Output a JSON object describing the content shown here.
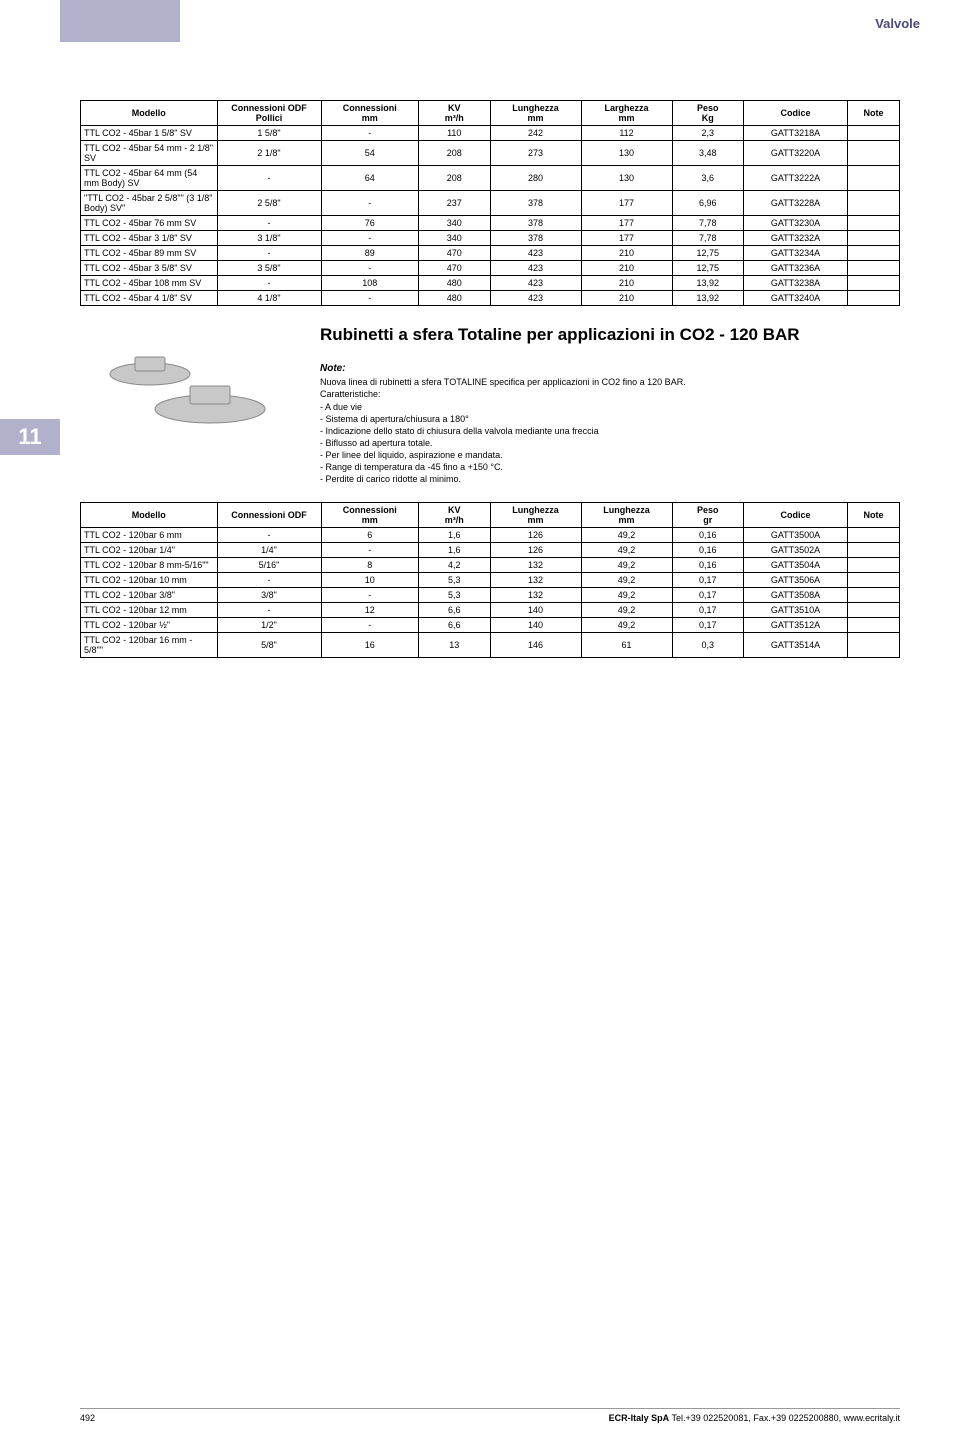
{
  "top_label": "Valvole",
  "side_num": "11",
  "table1": {
    "headers": [
      {
        "l1": "Modello",
        "l2": ""
      },
      {
        "l1": "Connessioni ODF",
        "l2": "Pollici"
      },
      {
        "l1": "Connessioni",
        "l2": "mm"
      },
      {
        "l1": "KV",
        "l2": "m³/h"
      },
      {
        "l1": "Lunghezza",
        "l2": "mm"
      },
      {
        "l1": "Larghezza",
        "l2": "mm"
      },
      {
        "l1": "Peso",
        "l2": "Kg"
      },
      {
        "l1": "Codice",
        "l2": ""
      },
      {
        "l1": "Note",
        "l2": ""
      }
    ],
    "rows": [
      [
        "TTL CO2 - 45bar 1 5/8\" SV",
        "1 5/8\"",
        "-",
        "110",
        "242",
        "112",
        "2,3",
        "GATT3218A",
        ""
      ],
      [
        "TTL CO2 - 45bar 54 mm - 2 1/8\" SV",
        "2 1/8\"",
        "54",
        "208",
        "273",
        "130",
        "3,48",
        "GATT3220A",
        ""
      ],
      [
        "TTL CO2 - 45bar 64 mm (54 mm Body) SV",
        "-",
        "64",
        "208",
        "280",
        "130",
        "3,6",
        "GATT3222A",
        ""
      ],
      [
        "\"TTL CO2 - 45bar 2 5/8\"\" (3 1/8\" Body) SV\"",
        "2 5/8\"",
        "-",
        "237",
        "378",
        "177",
        "6,96",
        "GATT3228A",
        ""
      ],
      [
        "TTL CO2 - 45bar 76 mm SV",
        "-",
        "76",
        "340",
        "378",
        "177",
        "7,78",
        "GATT3230A",
        ""
      ],
      [
        "TTL CO2 - 45bar 3 1/8\" SV",
        "3 1/8\"",
        "-",
        "340",
        "378",
        "177",
        "7,78",
        "GATT3232A",
        ""
      ],
      [
        "TTL CO2 - 45bar 89 mm SV",
        "-",
        "89",
        "470",
        "423",
        "210",
        "12,75",
        "GATT3234A",
        ""
      ],
      [
        "TTL CO2 - 45bar 3 5/8\" SV",
        "3 5/8\"",
        "-",
        "470",
        "423",
        "210",
        "12,75",
        "GATT3236A",
        ""
      ],
      [
        "TTL CO2 - 45bar 108 mm SV",
        "-",
        "108",
        "480",
        "423",
        "210",
        "13,92",
        "GATT3238A",
        ""
      ],
      [
        "TTL CO2 - 45bar 4 1/8\" SV",
        "4 1/8\"",
        "-",
        "480",
        "423",
        "210",
        "13,92",
        "GATT3240A",
        ""
      ]
    ]
  },
  "section2": {
    "title": "Rubinetti a sfera Totaline per applicazioni in CO2 - 120 BAR",
    "note_label": "Note:",
    "notes": [
      "Nuova linea di rubinetti a sfera TOTALINE specifica per applicazioni in CO2 fino a 120 BAR.",
      "Caratteristiche:",
      "- A due vie",
      "- Sistema di apertura/chiusura a 180°",
      "- Indicazione dello stato di chiusura della valvola mediante una freccia",
      "- Biflusso ad apertura totale.",
      "- Per linee del liquido, aspirazione e mandata.",
      "- Range di temperatura da -45 fino a +150 °C.",
      "- Perdite di carico ridotte al minimo."
    ]
  },
  "table2": {
    "headers": [
      {
        "l1": "Modello",
        "l2": ""
      },
      {
        "l1": "Connessioni ODF",
        "l2": ""
      },
      {
        "l1": "Connessioni",
        "l2": "mm"
      },
      {
        "l1": "KV",
        "l2": "m³/h"
      },
      {
        "l1": "Lunghezza",
        "l2": "mm"
      },
      {
        "l1": "Lunghezza",
        "l2": "mm"
      },
      {
        "l1": "Peso",
        "l2": "gr"
      },
      {
        "l1": "Codice",
        "l2": ""
      },
      {
        "l1": "Note",
        "l2": ""
      }
    ],
    "rows": [
      [
        "TTL CO2 - 120bar 6 mm",
        "-",
        "6",
        "1,6",
        "126",
        "49,2",
        "0,16",
        "GATT3500A",
        ""
      ],
      [
        "TTL CO2 - 120bar 1/4\"",
        "1/4\"",
        "-",
        "1,6",
        "126",
        "49,2",
        "0,16",
        "GATT3502A",
        ""
      ],
      [
        "TTL CO2 - 120bar 8 mm-5/16\"\"",
        "5/16\"",
        "8",
        "4,2",
        "132",
        "49,2",
        "0,16",
        "GATT3504A",
        ""
      ],
      [
        "TTL CO2 - 120bar 10 mm",
        "-",
        "10",
        "5,3",
        "132",
        "49,2",
        "0,17",
        "GATT3506A",
        ""
      ],
      [
        "TTL CO2 - 120bar 3/8\"",
        "3/8\"",
        "-",
        "5,3",
        "132",
        "49,2",
        "0,17",
        "GATT3508A",
        ""
      ],
      [
        "TTL CO2 - 120bar 12 mm",
        "-",
        "12",
        "6,6",
        "140",
        "49,2",
        "0,17",
        "GATT3510A",
        ""
      ],
      [
        "TTL CO2 - 120bar ½\"",
        "1/2\"",
        "-",
        "6,6",
        "140",
        "49,2",
        "0,17",
        "GATT3512A",
        ""
      ],
      [
        "TTL CO2 - 120bar 16 mm - 5/8\"\"",
        "5/8\"",
        "16",
        "13",
        "146",
        "61",
        "0,3",
        "GATT3514A",
        ""
      ]
    ]
  },
  "footer": {
    "page": "492",
    "textA": "ECR-Italy SpA",
    "textB": " Tel.+39 022520081, Fax.+39 0225200880, www.ecritaly.it"
  }
}
